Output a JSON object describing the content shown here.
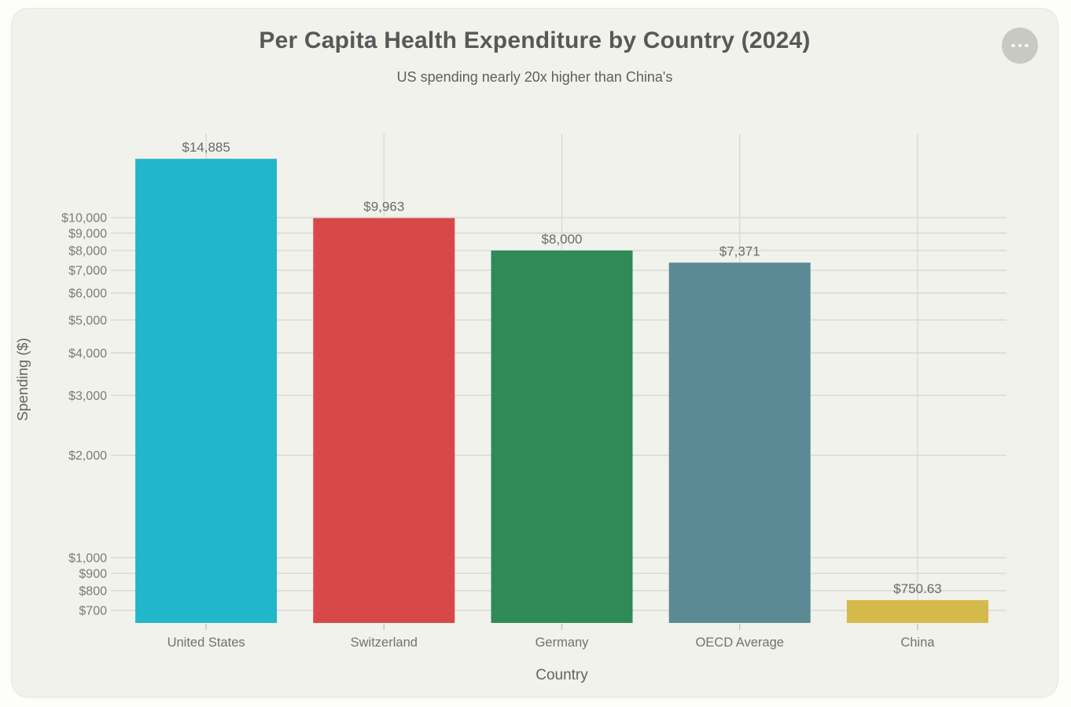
{
  "card": {
    "more_button_icon": "ellipsis"
  },
  "chart_data": {
    "type": "bar",
    "title": "Per Capita Health Expenditure by Country (2024)",
    "subtitle": "US spending nearly 20x higher than China's",
    "xlabel": "Country",
    "ylabel": "Spending ($)",
    "yscale": "log",
    "ylim": [
      643,
      17660
    ],
    "grid": true,
    "legend": false,
    "categories": [
      "United States",
      "Switzerland",
      "Germany",
      "OECD Average",
      "China"
    ],
    "values": [
      14885,
      9963,
      8000,
      7371,
      750.63
    ],
    "value_labels": [
      "$14,885",
      "$9,963",
      "$8,000",
      "$7,371",
      "$750.63"
    ],
    "bar_colors": [
      "#21b6c9",
      "#d84848",
      "#2f8a58",
      "#5b8a94",
      "#d4ba4a"
    ],
    "yticks": [
      700,
      800,
      900,
      1000,
      2000,
      3000,
      4000,
      5000,
      6000,
      7000,
      8000,
      9000,
      10000
    ],
    "ytick_labels": [
      "$700",
      "$800",
      "$900",
      "$1,000",
      "$2,000",
      "$3,000",
      "$4,000",
      "$5,000",
      "$6,000",
      "$7,000",
      "$8,000",
      "$9,000",
      "$10,000"
    ]
  },
  "style": {
    "page_bg": "#fdfdfa",
    "card_bg": "#f1f2ec",
    "grid_color": "#d7d8d1",
    "tick_text_color": "#7b7b78",
    "label_text_color": "#6a6a67",
    "title_color": "#58585a",
    "subtitle_color": "#5f5f5d",
    "button_bg": "#c9c9c4"
  }
}
